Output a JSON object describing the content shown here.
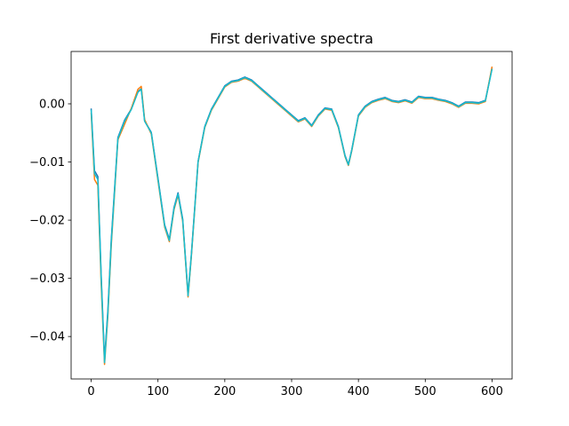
{
  "chart_data": {
    "type": "line",
    "title": "First derivative spectra",
    "x": [
      0,
      5,
      10,
      15,
      20,
      25,
      30,
      40,
      50,
      60,
      70,
      75,
      80,
      90,
      100,
      110,
      117,
      124,
      130,
      137,
      145,
      150,
      160,
      170,
      180,
      190,
      200,
      210,
      220,
      230,
      240,
      250,
      260,
      270,
      280,
      290,
      300,
      310,
      320,
      330,
      340,
      350,
      360,
      370,
      380,
      385,
      390,
      400,
      410,
      420,
      430,
      440,
      450,
      460,
      470,
      480,
      490,
      500,
      510,
      520,
      530,
      540,
      550,
      560,
      570,
      580,
      590,
      600
    ],
    "series": [
      {
        "color": "#1f77b4",
        "values": [
          -0.0008,
          -0.0115,
          -0.0125,
          -0.0295,
          -0.044,
          -0.0355,
          -0.0235,
          -0.0058,
          -0.0028,
          -0.0009,
          0.0021,
          0.0026,
          -0.0029,
          -0.0049,
          -0.0128,
          -0.0208,
          -0.0233,
          -0.0178,
          -0.0153,
          -0.0198,
          -0.0328,
          -0.0258,
          -0.0099,
          -0.0039,
          -0.0009,
          0.0011,
          0.0031,
          0.0039,
          0.0041,
          0.0046,
          0.0041,
          0.0031,
          0.0021,
          0.0011,
          0.0001,
          -0.0009,
          -0.0019,
          -0.0029,
          -0.0024,
          -0.0037,
          -0.0019,
          -0.0007,
          -0.0009,
          -0.0039,
          -0.0089,
          -0.0104,
          -0.0079,
          -0.0019,
          -0.0004,
          0.0004,
          0.0008,
          0.0011,
          0.0006,
          0.0004,
          0.0007,
          0.0003,
          0.0013,
          0.0011,
          0.0011,
          0.0008,
          0.0006,
          0.0002,
          -0.0004,
          0.0003,
          0.0003,
          0.0002,
          0.0006,
          0.0061
        ]
      },
      {
        "color": "#ff7f0e",
        "values": [
          -0.0015,
          -0.013,
          -0.014,
          -0.031,
          -0.0448,
          -0.0365,
          -0.0245,
          -0.0062,
          -0.0035,
          -0.0008,
          0.0025,
          0.003,
          -0.0027,
          -0.0052,
          -0.0132,
          -0.0212,
          -0.0237,
          -0.0182,
          -0.0157,
          -0.0202,
          -0.0332,
          -0.0262,
          -0.0101,
          -0.0041,
          -0.0011,
          0.0009,
          0.0029,
          0.0037,
          0.0039,
          0.0044,
          0.0039,
          0.0029,
          0.0019,
          0.0009,
          -0.0001,
          -0.0011,
          -0.0021,
          -0.0031,
          -0.0026,
          -0.0039,
          -0.0021,
          -0.0009,
          -0.0011,
          -0.0041,
          -0.0091,
          -0.0106,
          -0.0081,
          -0.0021,
          -0.0006,
          0.0002,
          0.0006,
          0.0009,
          0.0004,
          0.0002,
          0.0005,
          0.0001,
          0.0011,
          0.0009,
          0.0009,
          0.0006,
          0.0004,
          0.0,
          -0.0006,
          0.0001,
          0.0001,
          0.0,
          0.0004,
          0.0064
        ]
      },
      {
        "color": "#17becf",
        "values": [
          -0.001,
          -0.012,
          -0.013,
          -0.03,
          -0.0445,
          -0.036,
          -0.024,
          -0.006,
          -0.003,
          -0.001,
          0.002,
          0.0025,
          -0.003,
          -0.005,
          -0.013,
          -0.021,
          -0.0235,
          -0.018,
          -0.0155,
          -0.02,
          -0.033,
          -0.026,
          -0.01,
          -0.004,
          -0.001,
          0.001,
          0.003,
          0.0038,
          0.004,
          0.0045,
          0.004,
          0.003,
          0.002,
          0.001,
          0.0,
          -0.001,
          -0.002,
          -0.003,
          -0.0025,
          -0.0038,
          -0.002,
          -0.0008,
          -0.001,
          -0.004,
          -0.009,
          -0.0105,
          -0.008,
          -0.002,
          -0.0005,
          0.0003,
          0.0007,
          0.001,
          0.0005,
          0.0003,
          0.0006,
          0.0002,
          0.0012,
          0.001,
          0.001,
          0.0007,
          0.0005,
          0.0001,
          -0.0005,
          0.0002,
          0.0002,
          0.0001,
          0.0005,
          0.006
        ]
      }
    ],
    "xlim": [
      -30,
      630
    ],
    "xticks": [
      0,
      100,
      200,
      300,
      400,
      500,
      600
    ],
    "ylim": [
      -0.0473,
      0.009
    ],
    "yticks": [
      {
        "value": -0.04,
        "label": "−0.04"
      },
      {
        "value": -0.03,
        "label": "−0.03"
      },
      {
        "value": -0.02,
        "label": "−0.02"
      },
      {
        "value": -0.01,
        "label": "−0.01"
      },
      {
        "value": 0,
        "label": "0.00"
      }
    ],
    "grid": false
  }
}
